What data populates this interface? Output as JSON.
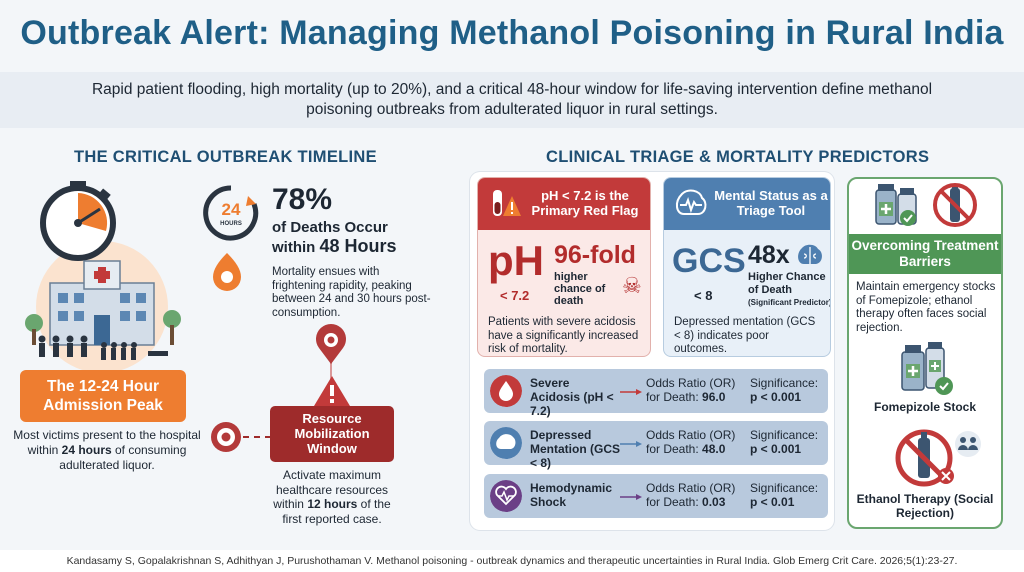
{
  "header": {
    "title": "Outbreak Alert: Managing Methanol Poisoning in Rural India",
    "subtitle": "Rapid patient flooding, high mortality (up to 20%), and a critical 48-hour window for life-saving intervention define methanol poisoning outbreaks from adulterated liquor in rural settings."
  },
  "timeline": {
    "section_title": "THE CRITICAL OUTBREAK TIMELINE",
    "clock_label_num": "24",
    "clock_label_unit": "HOURS",
    "stat_percent": "78%",
    "stat_line1": "of Deaths Occur",
    "stat_line2_pre": "within ",
    "stat_line2_bold": "48 Hours",
    "mortality_text": "Mortality ensues with frightening rapidity, peaking between 24 and 30 hours post-consumption.",
    "admission_title": "The 12-24 Hour Admission Peak",
    "admission_text_pre": "Most victims present to the hospital within ",
    "admission_text_bold": "24 hours",
    "admission_text_post": " of consuming adulterated liquor.",
    "resource_title": "Resource Mobilization Window",
    "resource_text_pre": "Activate maximum healthcare resources within ",
    "resource_text_bold": "12 hours",
    "resource_text_post": " of the first reported case."
  },
  "triage": {
    "section_title": "CLINICAL TRIAGE & MORTALITY PREDICTORS",
    "ph_card": {
      "header": "pH < 7.2 is the Primary Red Flag",
      "big": "pH",
      "big_sub": "< 7.2",
      "fold": "96-fold",
      "fold_sub": "higher chance of death",
      "text": "Patients with severe acidosis have a significantly increased risk of mortality."
    },
    "gcs_card": {
      "header": "Mental Status as a Triage Tool",
      "big": "GCS",
      "big_sub": "< 8",
      "fold": "48x",
      "fold_sub": "Higher Chance of Death",
      "fold_sub2": "(Significant Predictor)",
      "text": "Depressed mentation (GCS < 8) indicates poor outcomes."
    },
    "rows": [
      {
        "label": "Severe Acidosis (pH < 7.2)",
        "or_label": "Odds Ratio (OR) for Death:",
        "or_value": "96.0",
        "sig_label": "Significance:",
        "sig_value": "p < 0.001",
        "color": "#c23a3a"
      },
      {
        "label": "Depressed Mentation (GCS < 8)",
        "or_label": "Odds Ratio (OR) for Death:",
        "or_value": "48.0",
        "sig_label": "Significance:",
        "sig_value": "p < 0.001",
        "color": "#4f7fb0"
      },
      {
        "label": "Hemodynamic Shock",
        "or_label": "Odds Ratio (OR) for Death:",
        "or_value": "0.03",
        "sig_label": "Significance:",
        "sig_value": "p < 0.01",
        "color": "#6b3f86"
      }
    ]
  },
  "barriers": {
    "header": "Overcoming Treatment Barriers",
    "text": "Maintain emergency stocks of Fomepizole; ethanol therapy often faces social rejection.",
    "fomepizole_label": "Fomepizole Stock",
    "ethanol_label": "Ethanol Therapy (Social Rejection)"
  },
  "footer": {
    "citation": "Kandasamy S, Gopalakrishnan S, Adhithyan J, Purushothaman V. Methanol poisoning - outbreak dynamics and therapeutic uncertainties in Rural India. Glob Emerg Crit Care. 2026;5(1):23-27."
  }
}
